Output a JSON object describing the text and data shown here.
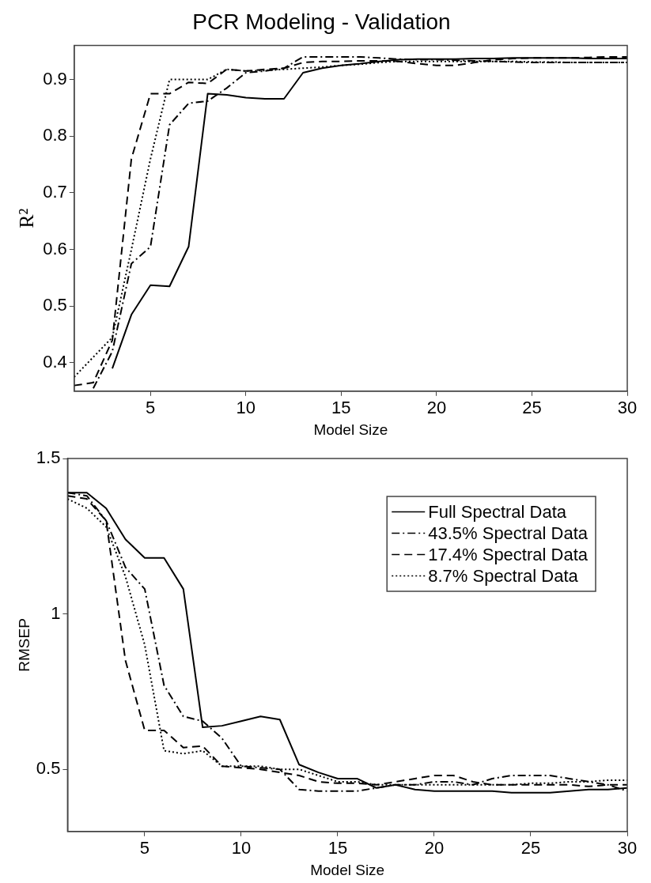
{
  "chart_data": [
    {
      "type": "line",
      "title": "PCR Modeling - Validation",
      "xlabel": "Model Size",
      "ylabel": "R²",
      "x": [
        1,
        2,
        3,
        4,
        5,
        6,
        7,
        8,
        9,
        10,
        11,
        12,
        13,
        14,
        15,
        16,
        17,
        18,
        19,
        20,
        21,
        22,
        23,
        24,
        25,
        26,
        27,
        28,
        29,
        30
      ],
      "xlim": [
        1,
        30
      ],
      "xticks": [
        5,
        10,
        15,
        20,
        25,
        30
      ],
      "ylim": [
        0.35,
        0.96
      ],
      "yticks": [
        0.4,
        0.5,
        0.6,
        0.7,
        0.8,
        0.9
      ],
      "grid": false,
      "legend": false,
      "series": [
        {
          "color": "#000000",
          "line_style": "solid",
          "values": [
            null,
            null,
            0.39,
            0.485,
            0.537,
            0.535,
            0.605,
            0.875,
            0.873,
            0.868,
            0.866,
            0.866,
            0.912,
            0.92,
            0.925,
            0.928,
            0.932,
            0.935,
            0.936,
            0.936,
            0.936,
            0.937,
            0.937,
            0.938,
            0.938,
            0.938,
            0.938,
            0.937,
            0.937,
            0.937
          ]
        },
        {
          "color": "#000000",
          "line_style": "dashdot",
          "values": [
            null,
            0.355,
            0.42,
            0.575,
            0.605,
            0.82,
            0.858,
            0.862,
            0.885,
            0.912,
            0.915,
            0.92,
            0.94,
            0.94,
            0.94,
            0.94,
            0.938,
            0.936,
            0.935,
            0.935,
            0.934,
            0.933,
            0.932,
            0.931,
            0.93,
            0.93,
            0.93,
            0.93,
            0.93,
            0.93
          ]
        },
        {
          "color": "#000000",
          "line_style": "dashed",
          "values": [
            0.36,
            0.365,
            0.44,
            0.76,
            0.875,
            0.875,
            0.895,
            0.893,
            0.918,
            0.915,
            0.918,
            0.92,
            0.93,
            0.932,
            0.932,
            0.933,
            0.933,
            0.932,
            0.928,
            0.925,
            0.925,
            0.93,
            0.935,
            0.937,
            0.938,
            0.938,
            0.938,
            0.939,
            0.94,
            0.94
          ]
        },
        {
          "color": "#000000",
          "line_style": "dotted",
          "values": [
            0.375,
            0.41,
            0.445,
            0.6,
            0.76,
            0.9,
            0.9,
            0.9,
            0.918,
            0.915,
            0.916,
            0.918,
            0.92,
            0.922,
            0.925,
            0.927,
            0.93,
            0.932,
            0.932,
            0.932,
            0.932,
            0.932,
            0.932,
            0.932,
            0.931,
            0.931,
            0.93,
            0.93,
            0.93,
            0.93
          ]
        }
      ]
    },
    {
      "type": "line",
      "xlabel": "Model Size",
      "ylabel": "RMSEP",
      "x": [
        1,
        2,
        3,
        4,
        5,
        6,
        7,
        8,
        9,
        10,
        11,
        12,
        13,
        14,
        15,
        16,
        17,
        18,
        19,
        20,
        21,
        22,
        23,
        24,
        25,
        26,
        27,
        28,
        29,
        30
      ],
      "xlim": [
        1,
        30
      ],
      "xticks": [
        5,
        10,
        15,
        20,
        25,
        30
      ],
      "ylim": [
        0.3,
        1.5
      ],
      "yticks": [
        0.5,
        1,
        1.5
      ],
      "grid": false,
      "legend": "top right",
      "series": [
        {
          "name": "Full Spectral Data",
          "color": "#000000",
          "line_style": "solid",
          "values": [
            1.39,
            1.39,
            1.34,
            1.24,
            1.18,
            1.18,
            1.08,
            0.635,
            0.64,
            0.655,
            0.67,
            0.66,
            0.515,
            0.49,
            0.47,
            0.47,
            0.44,
            0.45,
            0.435,
            0.43,
            0.43,
            0.43,
            0.43,
            0.425,
            0.425,
            0.425,
            0.43,
            0.435,
            0.435,
            0.44
          ]
        },
        {
          "name": "43.5% Spectral Data",
          "color": "#000000",
          "line_style": "dashdot",
          "values": [
            1.39,
            1.38,
            1.3,
            1.15,
            1.08,
            0.77,
            0.67,
            0.655,
            0.6,
            0.51,
            0.505,
            0.5,
            0.435,
            0.43,
            0.43,
            0.43,
            0.44,
            0.45,
            0.45,
            0.46,
            0.46,
            0.45,
            0.47,
            0.48,
            0.48,
            0.48,
            0.47,
            0.46,
            0.45,
            0.43
          ]
        },
        {
          "name": "17.4% Spectral Data",
          "color": "#000000",
          "line_style": "dashed",
          "values": [
            1.38,
            1.37,
            1.3,
            0.85,
            0.625,
            0.625,
            0.57,
            0.575,
            0.51,
            0.505,
            0.5,
            0.49,
            0.48,
            0.46,
            0.455,
            0.455,
            0.45,
            0.46,
            0.47,
            0.48,
            0.48,
            0.46,
            0.45,
            0.45,
            0.45,
            0.45,
            0.45,
            0.445,
            0.45,
            0.45
          ]
        },
        {
          "name": "8.7% Spectral Data",
          "color": "#000000",
          "line_style": "dotted",
          "values": [
            1.37,
            1.34,
            1.28,
            1.12,
            0.9,
            0.56,
            0.55,
            0.56,
            0.51,
            0.51,
            0.51,
            0.5,
            0.5,
            0.48,
            0.46,
            0.46,
            0.45,
            0.45,
            0.45,
            0.45,
            0.45,
            0.45,
            0.45,
            0.45,
            0.455,
            0.455,
            0.46,
            0.46,
            0.465,
            0.465
          ]
        }
      ]
    }
  ]
}
